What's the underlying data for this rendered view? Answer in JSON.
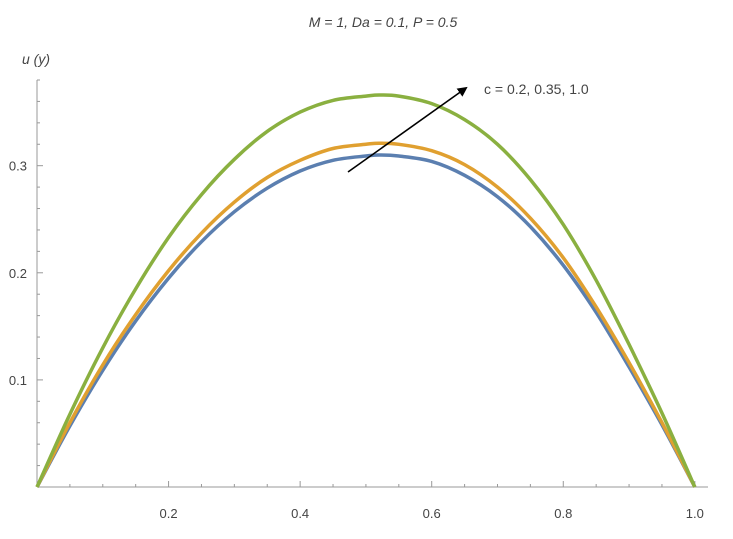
{
  "chart_data": {
    "type": "line",
    "title": "M = 1, Da = 0.1, P = 0.5",
    "xlabel": "",
    "ylabel": "u (y)",
    "xlim": [
      0,
      1.02
    ],
    "ylim": [
      0,
      0.38
    ],
    "xticks": [
      "0.2",
      "0.4",
      "0.6",
      "0.8",
      "1.0"
    ],
    "xtick_values": [
      0.2,
      0.4,
      0.6,
      0.8,
      1.0
    ],
    "yticks": [
      "0.1",
      "0.2",
      "0.3"
    ],
    "ytick_values": [
      0.1,
      0.2,
      0.3
    ],
    "grid": false,
    "annotation": "c = 0.2, 0.35, 1.0",
    "x": [
      0,
      0.05,
      0.1,
      0.15,
      0.2,
      0.25,
      0.3,
      0.35,
      0.4,
      0.45,
      0.5,
      0.52,
      0.55,
      0.6,
      0.65,
      0.7,
      0.75,
      0.8,
      0.85,
      0.9,
      0.95,
      1.0
    ],
    "series": [
      {
        "color": "#5b7fb0",
        "values": [
          0.0,
          0.057,
          0.109,
          0.155,
          0.195,
          0.229,
          0.257,
          0.279,
          0.295,
          0.305,
          0.309,
          0.31,
          0.309,
          0.304,
          0.291,
          0.271,
          0.243,
          0.207,
          0.163,
          0.112,
          0.058,
          0.0
        ]
      },
      {
        "color": "#e0a030",
        "values": [
          0.0,
          0.06,
          0.114,
          0.161,
          0.202,
          0.237,
          0.266,
          0.289,
          0.305,
          0.316,
          0.32,
          0.321,
          0.32,
          0.314,
          0.301,
          0.28,
          0.251,
          0.214,
          0.168,
          0.116,
          0.06,
          0.0
        ]
      },
      {
        "color": "#8ab040",
        "values": [
          0.0,
          0.068,
          0.13,
          0.185,
          0.233,
          0.273,
          0.306,
          0.332,
          0.35,
          0.361,
          0.365,
          0.366,
          0.365,
          0.358,
          0.343,
          0.32,
          0.287,
          0.245,
          0.193,
          0.133,
          0.069,
          0.0
        ]
      }
    ]
  }
}
